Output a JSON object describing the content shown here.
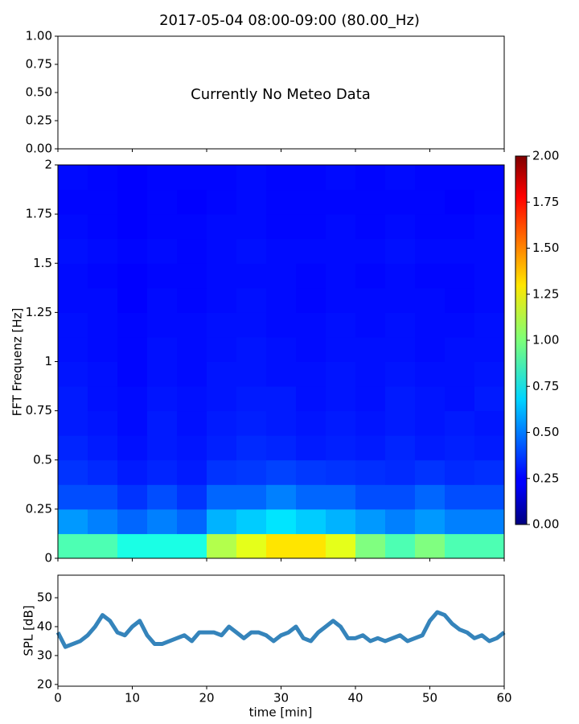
{
  "chart_data": [
    {
      "type": "empty",
      "title": "2017-05-04 08:00-09:00 (80.00_Hz)",
      "annotation": "Currently No Meteo Data",
      "xlim": [
        0,
        60
      ],
      "xticks": [
        0,
        10,
        20,
        30,
        40,
        50,
        60
      ],
      "xticklabels": false,
      "ylim": [
        0,
        1
      ],
      "yticks": [
        {
          "value": 0,
          "label": "0.00"
        },
        {
          "value": 0.25,
          "label": "0.25"
        },
        {
          "value": 0.5,
          "label": "0.50"
        },
        {
          "value": 0.75,
          "label": "0.75"
        },
        {
          "value": 1,
          "label": "1.00"
        }
      ]
    },
    {
      "type": "heatmap",
      "ylabel": "FFT Frequenz [Hz]",
      "xlim": [
        0,
        60
      ],
      "xticks": [
        0,
        10,
        20,
        30,
        40,
        50,
        60
      ],
      "xticklabels": false,
      "ylim": [
        0,
        2
      ],
      "yticks": [
        0,
        0.25,
        0.5,
        0.75,
        1,
        1.25,
        1.5,
        1.75,
        2
      ],
      "xbins": [
        0,
        4,
        8,
        12,
        16,
        20,
        24,
        28,
        32,
        36,
        40,
        44,
        48,
        52,
        56,
        60
      ],
      "ybins": [
        0,
        0.125,
        0.25,
        0.375,
        0.5,
        0.625,
        0.75,
        0.875,
        1,
        1.125,
        1.25,
        1.375,
        1.5,
        1.625,
        1.75,
        1.875,
        2
      ],
      "z": [
        [
          0.9,
          0.9,
          0.8,
          0.8,
          0.8,
          1.1,
          1.2,
          1.3,
          1.3,
          1.2,
          1.0,
          0.9,
          1.0,
          0.9,
          0.9
        ],
        [
          0.55,
          0.5,
          0.45,
          0.5,
          0.45,
          0.6,
          0.65,
          0.7,
          0.65,
          0.6,
          0.55,
          0.5,
          0.55,
          0.5,
          0.5
        ],
        [
          0.4,
          0.4,
          0.35,
          0.4,
          0.35,
          0.45,
          0.45,
          0.5,
          0.45,
          0.45,
          0.4,
          0.4,
          0.45,
          0.4,
          0.4
        ],
        [
          0.35,
          0.33,
          0.3,
          0.32,
          0.3,
          0.35,
          0.36,
          0.38,
          0.36,
          0.35,
          0.34,
          0.33,
          0.35,
          0.33,
          0.34
        ],
        [
          0.32,
          0.3,
          0.28,
          0.3,
          0.29,
          0.31,
          0.33,
          0.32,
          0.3,
          0.31,
          0.3,
          0.32,
          0.3,
          0.31,
          0.3
        ],
        [
          0.3,
          0.29,
          0.27,
          0.3,
          0.28,
          0.3,
          0.31,
          0.3,
          0.29,
          0.3,
          0.29,
          0.3,
          0.29,
          0.3,
          0.29
        ],
        [
          0.3,
          0.28,
          0.27,
          0.29,
          0.28,
          0.29,
          0.3,
          0.3,
          0.28,
          0.29,
          0.28,
          0.3,
          0.29,
          0.28,
          0.3
        ],
        [
          0.29,
          0.28,
          0.26,
          0.28,
          0.27,
          0.29,
          0.29,
          0.28,
          0.28,
          0.29,
          0.28,
          0.29,
          0.28,
          0.28,
          0.29
        ],
        [
          0.28,
          0.27,
          0.26,
          0.28,
          0.27,
          0.28,
          0.29,
          0.28,
          0.27,
          0.28,
          0.28,
          0.28,
          0.27,
          0.28,
          0.28
        ],
        [
          0.28,
          0.27,
          0.26,
          0.27,
          0.27,
          0.28,
          0.28,
          0.27,
          0.27,
          0.28,
          0.27,
          0.28,
          0.27,
          0.27,
          0.28
        ],
        [
          0.27,
          0.27,
          0.25,
          0.27,
          0.26,
          0.27,
          0.28,
          0.27,
          0.26,
          0.27,
          0.27,
          0.27,
          0.27,
          0.26,
          0.27
        ],
        [
          0.27,
          0.26,
          0.25,
          0.26,
          0.26,
          0.27,
          0.27,
          0.27,
          0.26,
          0.27,
          0.26,
          0.27,
          0.26,
          0.26,
          0.27
        ],
        [
          0.28,
          0.27,
          0.26,
          0.27,
          0.26,
          0.27,
          0.28,
          0.27,
          0.27,
          0.27,
          0.27,
          0.28,
          0.27,
          0.27,
          0.27
        ],
        [
          0.27,
          0.26,
          0.25,
          0.26,
          0.26,
          0.27,
          0.27,
          0.26,
          0.26,
          0.27,
          0.26,
          0.27,
          0.26,
          0.26,
          0.27
        ],
        [
          0.26,
          0.26,
          0.25,
          0.26,
          0.25,
          0.26,
          0.27,
          0.26,
          0.26,
          0.26,
          0.26,
          0.26,
          0.26,
          0.25,
          0.26
        ],
        [
          0.27,
          0.26,
          0.25,
          0.26,
          0.26,
          0.26,
          0.27,
          0.26,
          0.26,
          0.27,
          0.26,
          0.27,
          0.26,
          0.26,
          0.26
        ]
      ],
      "clim": [
        0,
        2
      ],
      "colormap": "jet",
      "cticks": [
        {
          "value": 0,
          "label": "0.00"
        },
        {
          "value": 0.25,
          "label": "0.25"
        },
        {
          "value": 0.5,
          "label": "0.50"
        },
        {
          "value": 0.75,
          "label": "0.75"
        },
        {
          "value": 1,
          "label": "1.00"
        },
        {
          "value": 1.25,
          "label": "1.25"
        },
        {
          "value": 1.5,
          "label": "1.50"
        },
        {
          "value": 1.75,
          "label": "1.75"
        },
        {
          "value": 2,
          "label": "2.00"
        }
      ]
    },
    {
      "type": "line",
      "xlabel": "time [min]",
      "ylabel": "SPL [dB]",
      "xlim": [
        0,
        60
      ],
      "xticks": [
        0,
        10,
        20,
        30,
        40,
        50,
        60
      ],
      "xticklabels": true,
      "ylim": [
        19.4,
        57.8
      ],
      "yticks": [
        20,
        30,
        40,
        50
      ],
      "series": [
        {
          "color": "#1f77b4",
          "x": [
            0,
            1,
            2,
            3,
            4,
            5,
            6,
            7,
            8,
            9,
            10,
            11,
            12,
            13,
            14,
            15,
            16,
            17,
            18,
            19,
            20,
            21,
            22,
            23,
            24,
            25,
            26,
            27,
            28,
            29,
            30,
            31,
            32,
            33,
            34,
            35,
            36,
            37,
            38,
            39,
            40,
            41,
            42,
            43,
            44,
            45,
            46,
            47,
            48,
            49,
            50,
            51,
            52,
            53,
            54,
            55,
            56,
            57,
            58,
            59,
            60
          ],
          "values": [
            38,
            33,
            34,
            35,
            37,
            40,
            44,
            42,
            38,
            37,
            40,
            42,
            37,
            34,
            34,
            35,
            36,
            37,
            35,
            38,
            38,
            38,
            37,
            40,
            38,
            36,
            38,
            38,
            37,
            35,
            37,
            38,
            40,
            36,
            35,
            38,
            40,
            42,
            40,
            36,
            36,
            37,
            35,
            36,
            35,
            36,
            37,
            35,
            36,
            37,
            42,
            45,
            44,
            41,
            39,
            38,
            36,
            37,
            35,
            36,
            38
          ]
        }
      ]
    }
  ]
}
